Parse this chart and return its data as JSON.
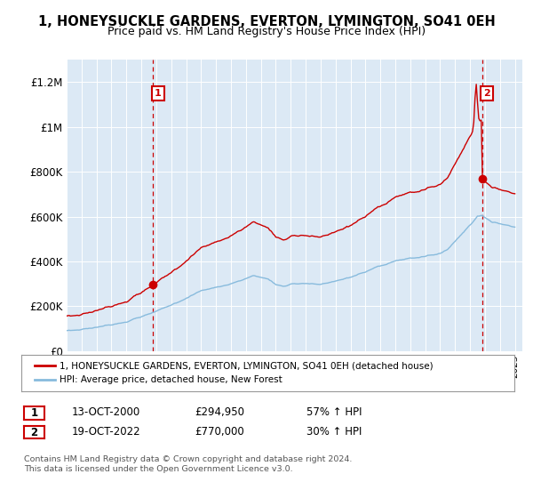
{
  "title": "1, HONEYSUCKLE GARDENS, EVERTON, LYMINGTON, SO41 0EH",
  "subtitle": "Price paid vs. HM Land Registry's House Price Index (HPI)",
  "ylim": [
    0,
    1300000
  ],
  "yticks": [
    0,
    200000,
    400000,
    600000,
    800000,
    1000000,
    1200000
  ],
  "ytick_labels": [
    "£0",
    "£200K",
    "£400K",
    "£600K",
    "£800K",
    "£1M",
    "£1.2M"
  ],
  "bg_color": "#dce9f5",
  "line1_color": "#cc0000",
  "line2_color": "#88bbdd",
  "vline_color": "#cc0000",
  "sale1_x": 2000.79,
  "sale1_y": 294950,
  "sale2_x": 2022.8,
  "sale2_y": 770000,
  "legend_label1": "1, HONEYSUCKLE GARDENS, EVERTON, LYMINGTON, SO41 0EH (detached house)",
  "legend_label2": "HPI: Average price, detached house, New Forest",
  "table_row1": [
    "1",
    "13-OCT-2000",
    "£294,950",
    "57% ↑ HPI"
  ],
  "table_row2": [
    "2",
    "19-OCT-2022",
    "£770,000",
    "30% ↑ HPI"
  ],
  "footer": "Contains HM Land Registry data © Crown copyright and database right 2024.\nThis data is licensed under the Open Government Licence v3.0.",
  "xmin": 1995.0,
  "xmax": 2025.5
}
